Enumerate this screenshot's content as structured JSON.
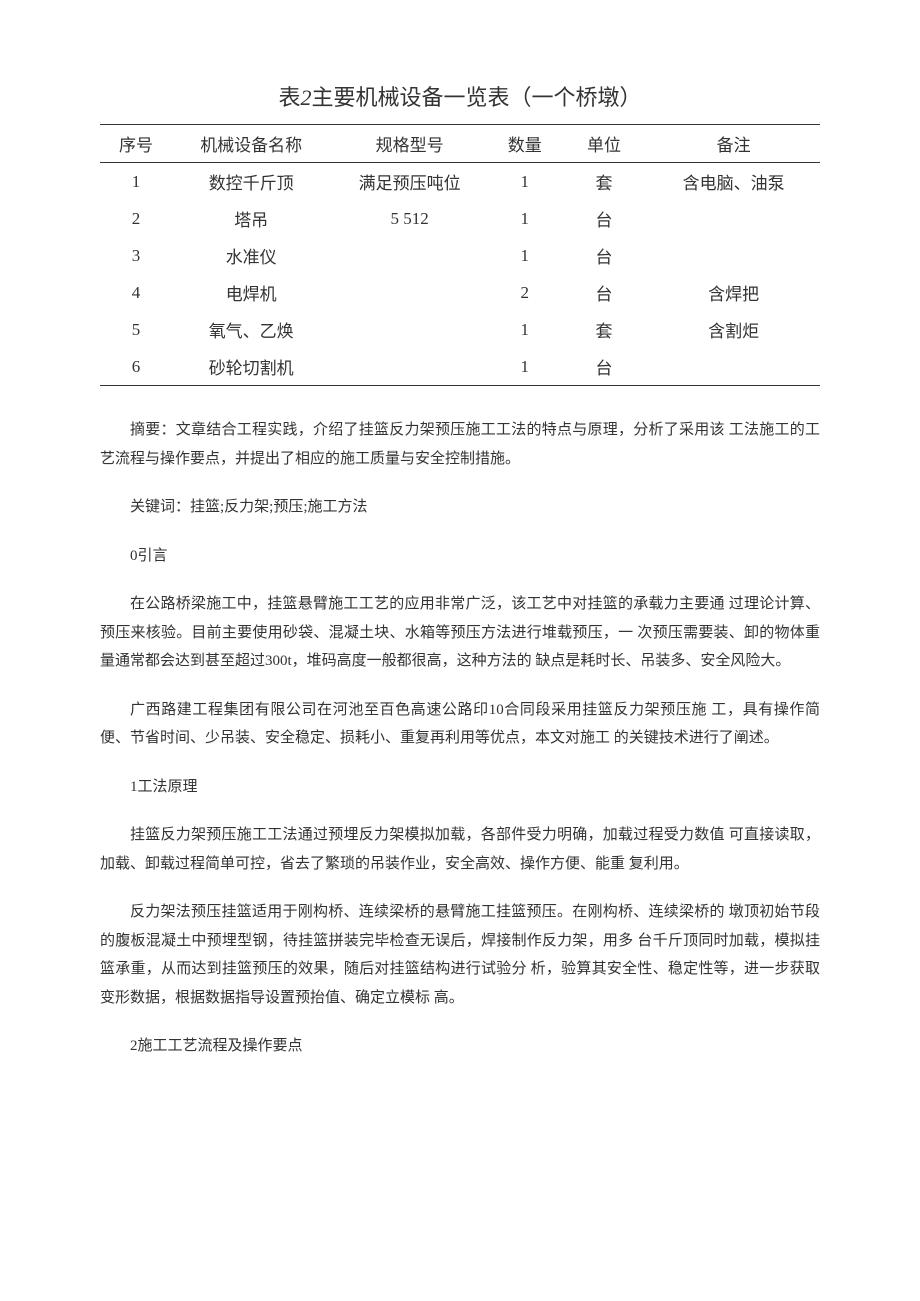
{
  "table": {
    "title_prefix": "表",
    "title_number": "2",
    "title_text": "主要机械设备一览表（一个桥墩）",
    "columns": [
      "序号",
      "机械设备名称",
      "规格型号",
      "数量",
      "单位",
      "备注"
    ],
    "rows": [
      [
        "1",
        "数控千斤顶",
        "满足预压吨位",
        "1",
        "套",
        "含电脑、油泵"
      ],
      [
        "2",
        "塔吊",
        "5 512",
        "1",
        "台",
        ""
      ],
      [
        "3",
        "水准仪",
        "",
        "1",
        "台",
        ""
      ],
      [
        "4",
        "电焊机",
        "",
        "2",
        "台",
        "含焊把"
      ],
      [
        "5",
        "氧气、乙焕",
        "",
        "1",
        "套",
        "含割炬"
      ],
      [
        "6",
        "砂轮切割机",
        "",
        "1",
        "台",
        ""
      ]
    ]
  },
  "paragraphs": {
    "p1": "摘要：文章结合工程实践，介绍了挂篮反力架预压施工工法的特点与原理，分析了采用该 工法施工的工艺流程与操作要点，并提出了相应的施工质量与安全控制措施。",
    "p2": "关键词：挂篮;反力架;预压;施工方法",
    "p3": "0引言",
    "p4": "在公路桥梁施工中，挂篮悬臂施工工艺的应用非常广泛，该工艺中对挂篮的承载力主要通 过理论计算、预压来核验。目前主要使用砂袋、混凝土块、水箱等预压方法进行堆载预压，一 次预压需要装、卸的物体重量通常都会达到甚至超过300t，堆码高度一般都很高，这种方法的 缺点是耗时长、吊装多、安全风险大。",
    "p5": "广西路建工程集团有限公司在河池至百色高速公路印10合同段采用挂篮反力架预压施 工，具有操作简便、节省时间、少吊装、安全稳定、损耗小、重复再利用等优点，本文对施工 的关键技术进行了阐述。",
    "p6": "1工法原理",
    "p7": "挂篮反力架预压施工工法通过预埋反力架模拟加载，各部件受力明确，加载过程受力数值 可直接读取，加载、卸载过程简单可控，省去了繁琐的吊装作业，安全高效、操作方便、能重 复利用。",
    "p8": "反力架法预压挂篮适用于刚构桥、连续梁桥的悬臂施工挂篮预压。在刚构桥、连续梁桥的 墩顶初始节段的腹板混凝土中预埋型钢，待挂篮拼装完毕检查无误后，焊接制作反力架，用多 台千斤顶同时加载，模拟挂篮承重，从而达到挂篮预压的效果，随后对挂篮结构进行试验分 析，验算其安全性、稳定性等，进一步获取变形数据，根据数据指导设置预抬值、确定立模标 高。",
    "p9": "2施工工艺流程及操作要点"
  }
}
